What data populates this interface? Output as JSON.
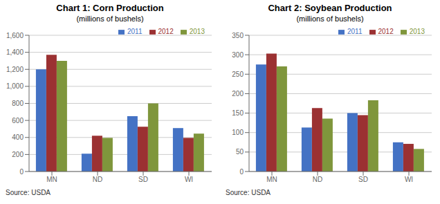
{
  "chart_data": [
    {
      "type": "bar",
      "title": "Chart 1: Corn Production",
      "subtitle": "(millions of bushels)",
      "categories": [
        "MN",
        "ND",
        "SD",
        "WI"
      ],
      "series": [
        {
          "name": "2011",
          "color": "#4472C4",
          "values": [
            1200,
            210,
            650,
            510
          ]
        },
        {
          "name": "2012",
          "color": "#9B3132",
          "values": [
            1370,
            420,
            525,
            395
          ]
        },
        {
          "name": "2013",
          "color": "#7F963C",
          "values": [
            1300,
            395,
            800,
            445
          ]
        }
      ],
      "ylim": [
        0,
        1600
      ],
      "yticks": [
        0,
        200,
        400,
        600,
        800,
        {
          "value": 1000,
          "label": "1,000"
        },
        {
          "value": 1200,
          "label": "1,200"
        },
        {
          "value": 1400,
          "label": "1,400"
        },
        {
          "value": 1600,
          "label": "1,600"
        }
      ],
      "grid": true,
      "legend": "upper right",
      "annotations": [
        "Source: USDA"
      ]
    },
    {
      "type": "bar",
      "title": "Chart 2: Soybean Production",
      "subtitle": "(millions of bushels)",
      "categories": [
        "MN",
        "ND",
        "SD",
        "WI"
      ],
      "series": [
        {
          "name": "2011",
          "color": "#4472C4",
          "values": [
            275,
            113,
            150,
            75
          ]
        },
        {
          "name": "2012",
          "color": "#9B3132",
          "values": [
            303,
            163,
            145,
            71
          ]
        },
        {
          "name": "2013",
          "color": "#7F963C",
          "values": [
            270,
            136,
            183,
            58
          ]
        }
      ],
      "ylim": [
        0,
        350
      ],
      "yticks": [
        0,
        50,
        100,
        150,
        200,
        250,
        300,
        350
      ],
      "grid": true,
      "legend": "upper right",
      "annotations": [
        "Source: USDA"
      ]
    }
  ]
}
